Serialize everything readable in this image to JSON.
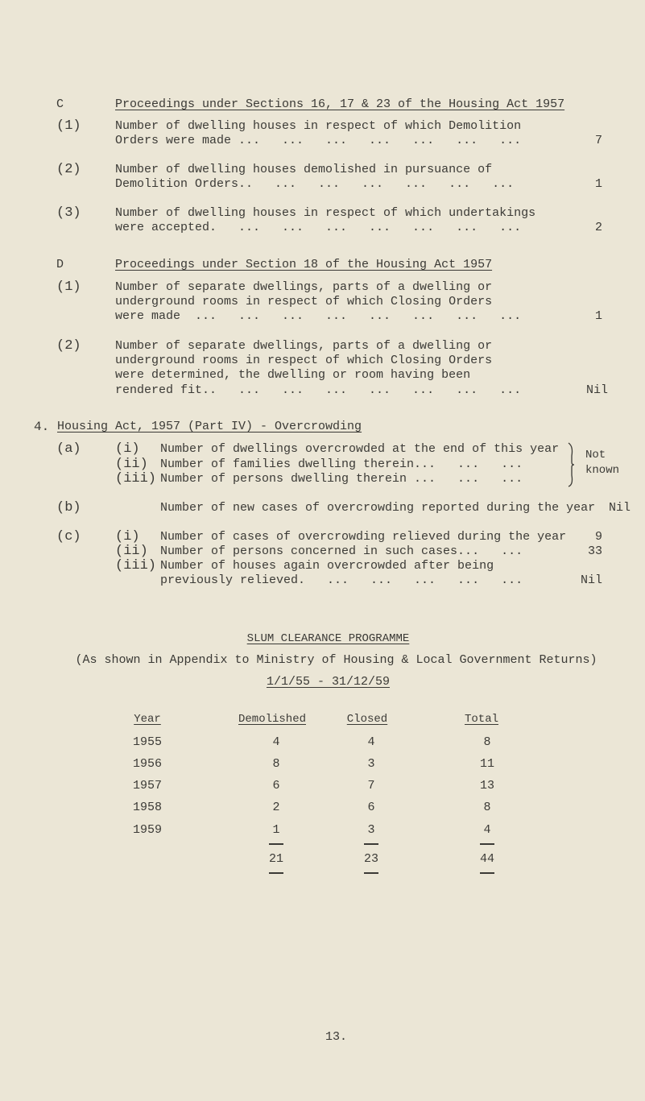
{
  "sectionC": {
    "letter": "C",
    "title": "Proceedings under Sections 16, 17 & 23 of the Housing Act 1957",
    "items": [
      {
        "label": "(1)",
        "lines": [
          "Number of dwelling houses in respect of which Demolition",
          "Orders were made ...   ...   ...   ...   ...   ...   ..."
        ],
        "value": "7"
      },
      {
        "label": "(2)",
        "lines": [
          "Number of dwelling houses demolished in pursuance of",
          "Demolition Orders..   ...   ...   ...   ...   ...   ..."
        ],
        "value": "1"
      },
      {
        "label": "(3)",
        "lines": [
          "Number of dwelling houses in respect of which undertakings",
          "were accepted.   ...   ...   ...   ...   ...   ...   ..."
        ],
        "value": "2"
      }
    ]
  },
  "sectionD": {
    "letter": "D",
    "title": "Proceedings under Section 18 of the Housing Act 1957",
    "items": [
      {
        "label": "(1)",
        "lines": [
          "Number of separate dwellings, parts of a dwelling or",
          "underground rooms in respect of which Closing Orders",
          "were made  ...   ...   ...   ...   ...   ...   ...   ..."
        ],
        "value": "1"
      },
      {
        "label": "(2)",
        "lines": [
          "Number of separate dwellings, parts of a dwelling or",
          "underground rooms in respect of which Closing Orders",
          "were determined, the dwelling or room having been",
          "rendered fit..   ...   ...   ...   ...   ...   ...   ..."
        ],
        "value": "Nil"
      }
    ]
  },
  "section4": {
    "number": "4.",
    "title": "Housing Act, 1957 (Part IV) - Overcrowding",
    "a": {
      "label": "(a)",
      "items": [
        {
          "label": "(i)",
          "text": "Number of dwellings overcrowded at the end of this year"
        },
        {
          "label": "(ii)",
          "text": "Number of families dwelling therein...   ...   ..."
        },
        {
          "label": "(iii)",
          "text": "Number of persons dwelling therein ...   ...   ..."
        }
      ],
      "value_line1": "Not",
      "value_line2": "known"
    },
    "b": {
      "label": "(b)",
      "text": "Number of new cases of overcrowding reported during the year",
      "value": "Nil"
    },
    "c": {
      "label": "(c)",
      "items": [
        {
          "label": "(i)",
          "lines": [
            "Number of cases of overcrowding relieved during the year"
          ],
          "value": "9"
        },
        {
          "label": "(ii)",
          "lines": [
            "Number of persons concerned in such cases...   ..."
          ],
          "value": "33"
        },
        {
          "label": "(iii)",
          "lines": [
            "Number of houses again overcrowded after being",
            "previously relieved.   ...   ...   ...   ...   ..."
          ],
          "value": "Nil"
        }
      ]
    }
  },
  "slum": {
    "title": "SLUM CLEARANCE PROGRAMME",
    "subtitle": "(As shown in Appendix to Ministry of Housing & Local Government Returns)",
    "period": "1/1/55 - 31/12/59",
    "headers": [
      "Year",
      "Demolished",
      "Closed",
      "Total"
    ],
    "rows": [
      [
        "1955",
        "4",
        "4",
        "8"
      ],
      [
        "1956",
        "8",
        "3",
        "11"
      ],
      [
        "1957",
        "6",
        "7",
        "13"
      ],
      [
        "1958",
        "2",
        "6",
        "8"
      ],
      [
        "1959",
        "1",
        "3",
        "4"
      ]
    ],
    "totals": [
      "21",
      "23",
      "44"
    ]
  },
  "page_number": "13."
}
